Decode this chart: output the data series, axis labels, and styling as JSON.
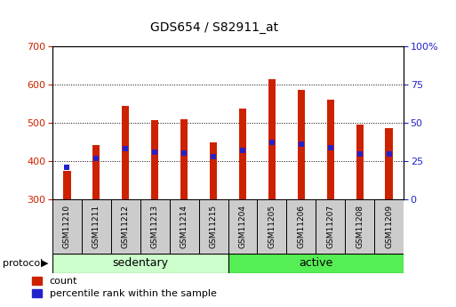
{
  "title": "GDS654 / S82911_at",
  "samples": [
    "GSM11210",
    "GSM11211",
    "GSM11212",
    "GSM11213",
    "GSM11214",
    "GSM11215",
    "GSM11204",
    "GSM11205",
    "GSM11206",
    "GSM11207",
    "GSM11208",
    "GSM11209"
  ],
  "count_values": [
    375,
    443,
    545,
    508,
    510,
    450,
    537,
    613,
    585,
    560,
    495,
    485
  ],
  "percentile_values": [
    383,
    408,
    432,
    423,
    422,
    413,
    428,
    450,
    445,
    435,
    420,
    418
  ],
  "bar_bottom": 300,
  "ylim_left": [
    300,
    700
  ],
  "ylim_right": [
    0,
    100
  ],
  "yticks_left": [
    300,
    400,
    500,
    600,
    700
  ],
  "yticks_right": [
    0,
    25,
    50,
    75,
    100
  ],
  "bar_color": "#cc2200",
  "blue_color": "#2222cc",
  "group1_label": "sedentary",
  "group2_label": "active",
  "group1_indices": [
    0,
    1,
    2,
    3,
    4,
    5
  ],
  "group2_indices": [
    6,
    7,
    8,
    9,
    10,
    11
  ],
  "group1_color": "#ccffcc",
  "group2_color": "#55ee55",
  "protocol_label": "protocol",
  "legend_count": "count",
  "legend_pct": "percentile rank within the sample",
  "bar_width": 0.25,
  "xlabel_color": "#cc2200",
  "right_axis_color": "#2222cc",
  "fig_width": 5.13,
  "fig_height": 3.45,
  "dpi": 100
}
